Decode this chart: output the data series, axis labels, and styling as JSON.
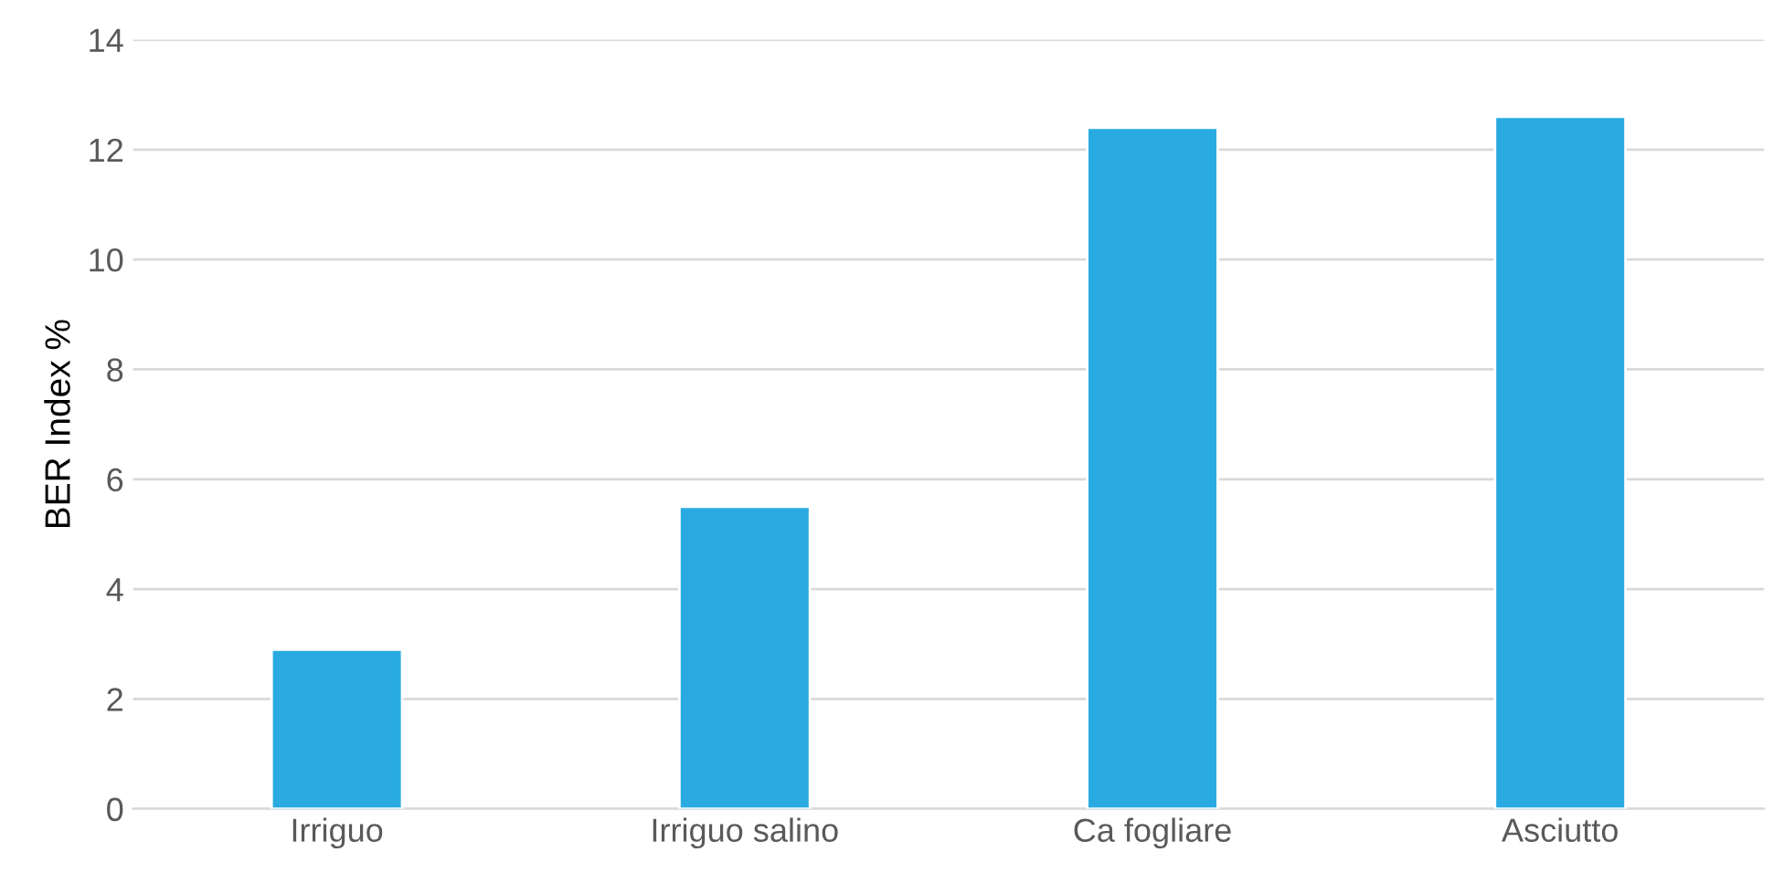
{
  "chart_data": {
    "type": "bar",
    "ylabel": "BER Index %",
    "categories": [
      "Irriguo",
      "Irriguo salino",
      "Ca fogliare",
      "Asciutto"
    ],
    "values": [
      2.9,
      5.5,
      12.4,
      12.6
    ],
    "color": "#29abe2",
    "ylim": [
      0,
      14
    ],
    "yticks": [
      0,
      2,
      4,
      6,
      8,
      10,
      12,
      14
    ],
    "grid": "y"
  }
}
